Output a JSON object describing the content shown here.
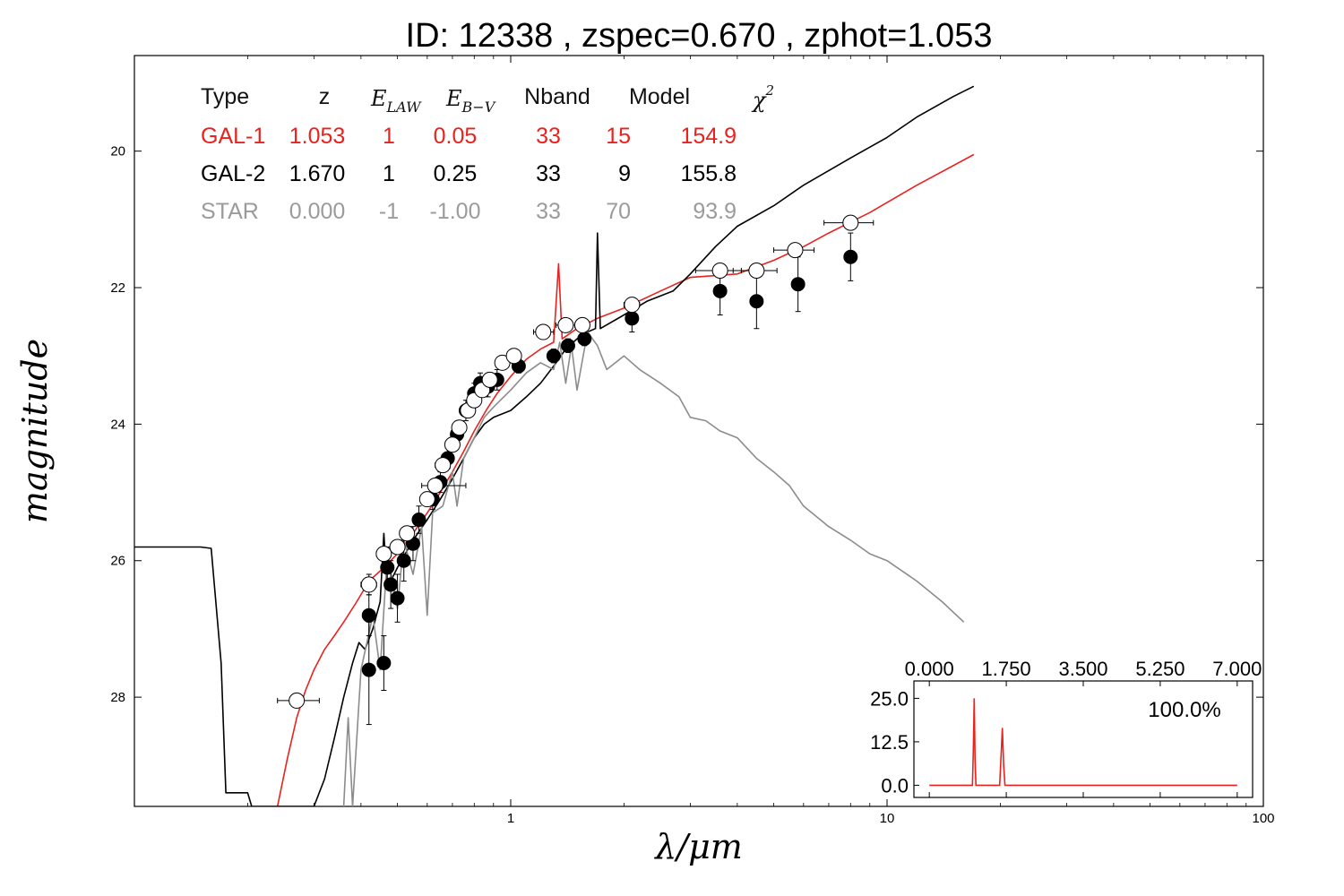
{
  "chart_data": {
    "type": "scatter",
    "title": "ID:  12338 , zspec=0.670 , zphot=1.053",
    "xlabel": "λ/μm",
    "ylabel": "magnitude",
    "xscale": "log",
    "xlim": [
      0.1,
      100
    ],
    "ylim": [
      29.6,
      18.6
    ],
    "y_inverted": true,
    "x_ticks": [
      1,
      10,
      100
    ],
    "x_tick_labels": [
      "1",
      "10",
      "100"
    ],
    "y_ticks": [
      20,
      22,
      24,
      26,
      28
    ],
    "y_tick_labels": [
      "20",
      "22",
      "24",
      "26",
      "28"
    ],
    "table": {
      "headers": [
        "Type",
        "z",
        "E_LAW",
        "E_B−V",
        "Nband",
        "Model",
        "χ²"
      ],
      "header_math": {
        "elaw": {
          "base": "E",
          "sub": "LAW"
        },
        "ebv": {
          "base": "E",
          "sub": "B−V"
        },
        "chi": {
          "base": "χ",
          "sup": "2"
        }
      },
      "rows": [
        {
          "color": "#e8231f",
          "cells": [
            "GAL-1",
            "1.053",
            "1",
            "0.05",
            "33",
            "15",
            "154.9"
          ]
        },
        {
          "color": "#000000",
          "cells": [
            "GAL-2",
            "1.670",
            "1",
            "0.25",
            "33",
            "9",
            "155.8"
          ]
        },
        {
          "color": "#9b9b9b",
          "cells": [
            "STAR",
            "0.000",
            "-1",
            "-1.00",
            "33",
            "70",
            "93.9"
          ]
        }
      ]
    },
    "series": [
      {
        "color": "#e8231f",
        "kind": "line",
        "points": [
          [
            0.24,
            29.6
          ],
          [
            0.255,
            28.9
          ],
          [
            0.27,
            28.3
          ],
          [
            0.285,
            27.9
          ],
          [
            0.3,
            27.6
          ],
          [
            0.32,
            27.3
          ],
          [
            0.34,
            27.1
          ],
          [
            0.36,
            26.9
          ],
          [
            0.39,
            26.6
          ],
          [
            0.42,
            26.3
          ],
          [
            0.46,
            26.1
          ],
          [
            0.5,
            25.9
          ],
          [
            0.55,
            25.6
          ],
          [
            0.6,
            25.3
          ],
          [
            0.65,
            25.0
          ],
          [
            0.7,
            24.7
          ],
          [
            0.75,
            24.4
          ],
          [
            0.8,
            24.1
          ],
          [
            0.86,
            23.8
          ],
          [
            0.92,
            23.55
          ],
          [
            1.0,
            23.3
          ],
          [
            1.1,
            23.05
          ],
          [
            1.2,
            22.9
          ],
          [
            1.3,
            22.8
          ],
          [
            1.34,
            21.65
          ],
          [
            1.37,
            22.75
          ],
          [
            1.5,
            22.6
          ],
          [
            1.7,
            22.45
          ],
          [
            2.0,
            22.3
          ],
          [
            2.5,
            22.05
          ],
          [
            3.0,
            21.85
          ],
          [
            4.0,
            21.8
          ],
          [
            5.0,
            21.6
          ],
          [
            6.0,
            21.4
          ],
          [
            7.0,
            21.2
          ],
          [
            9.0,
            20.9
          ],
          [
            12.0,
            20.5
          ],
          [
            17.0,
            20.05
          ]
        ]
      },
      {
        "color": "#000000",
        "kind": "line",
        "points": [
          [
            0.1,
            25.8
          ],
          [
            0.15,
            25.8
          ],
          [
            0.16,
            25.82
          ],
          [
            0.17,
            27.5
          ],
          [
            0.175,
            29.4
          ],
          [
            0.2,
            29.4
          ],
          [
            0.205,
            29.6
          ],
          [
            0.3,
            29.6
          ],
          [
            0.32,
            29.2
          ],
          [
            0.34,
            28.6
          ],
          [
            0.36,
            28.0
          ],
          [
            0.38,
            27.5
          ],
          [
            0.395,
            27.2
          ],
          [
            0.41,
            27.3
          ],
          [
            0.43,
            27.0
          ],
          [
            0.45,
            26.6
          ],
          [
            0.46,
            25.6
          ],
          [
            0.47,
            26.4
          ],
          [
            0.5,
            26.1
          ],
          [
            0.55,
            25.7
          ],
          [
            0.6,
            25.4
          ],
          [
            0.65,
            25.1
          ],
          [
            0.7,
            24.8
          ],
          [
            0.75,
            24.5
          ],
          [
            0.8,
            24.2
          ],
          [
            0.85,
            24.0
          ],
          [
            0.9,
            23.9
          ],
          [
            1.0,
            23.8
          ],
          [
            1.1,
            23.6
          ],
          [
            1.2,
            23.4
          ],
          [
            1.3,
            23.15
          ],
          [
            1.4,
            22.9
          ],
          [
            1.5,
            22.75
          ],
          [
            1.6,
            22.65
          ],
          [
            1.68,
            22.6
          ],
          [
            1.7,
            21.2
          ],
          [
            1.73,
            22.6
          ],
          [
            2.0,
            22.4
          ],
          [
            2.3,
            22.2
          ],
          [
            2.7,
            22.05
          ],
          [
            3.0,
            21.8
          ],
          [
            3.5,
            21.4
          ],
          [
            4.0,
            21.1
          ],
          [
            5.0,
            20.8
          ],
          [
            6.0,
            20.5
          ],
          [
            8.0,
            20.1
          ],
          [
            10.0,
            19.8
          ],
          [
            12.0,
            19.5
          ],
          [
            15.0,
            19.2
          ],
          [
            17.0,
            19.05
          ]
        ]
      },
      {
        "color": "#8c8c8c",
        "kind": "line",
        "points": [
          [
            0.36,
            29.6
          ],
          [
            0.37,
            28.3
          ],
          [
            0.38,
            29.6
          ],
          [
            0.4,
            27.6
          ],
          [
            0.43,
            26.8
          ],
          [
            0.45,
            27.6
          ],
          [
            0.47,
            25.9
          ],
          [
            0.5,
            26.7
          ],
          [
            0.52,
            25.7
          ],
          [
            0.55,
            26.2
          ],
          [
            0.58,
            25.5
          ],
          [
            0.6,
            26.8
          ],
          [
            0.62,
            25.3
          ],
          [
            0.66,
            25.2
          ],
          [
            0.7,
            24.7
          ],
          [
            0.72,
            25.2
          ],
          [
            0.75,
            24.5
          ],
          [
            0.8,
            24.2
          ],
          [
            0.85,
            23.9
          ],
          [
            0.9,
            23.75
          ],
          [
            1.0,
            23.5
          ],
          [
            1.1,
            23.25
          ],
          [
            1.2,
            23.1
          ],
          [
            1.3,
            23.2
          ],
          [
            1.35,
            22.8
          ],
          [
            1.4,
            23.4
          ],
          [
            1.45,
            22.85
          ],
          [
            1.5,
            23.5
          ],
          [
            1.6,
            22.65
          ],
          [
            1.7,
            22.85
          ],
          [
            1.8,
            23.2
          ],
          [
            2.0,
            23.0
          ],
          [
            2.2,
            23.2
          ],
          [
            2.5,
            23.4
          ],
          [
            2.8,
            23.6
          ],
          [
            3.0,
            23.9
          ],
          [
            3.3,
            23.95
          ],
          [
            3.6,
            24.1
          ],
          [
            4.0,
            24.2
          ],
          [
            4.5,
            24.5
          ],
          [
            5.0,
            24.7
          ],
          [
            5.5,
            24.9
          ],
          [
            6.0,
            25.2
          ],
          [
            7.0,
            25.5
          ],
          [
            8.0,
            25.7
          ],
          [
            9.0,
            25.9
          ],
          [
            10.0,
            26.0
          ],
          [
            12.0,
            26.3
          ],
          [
            14.0,
            26.6
          ],
          [
            16.0,
            26.9
          ]
        ]
      }
    ],
    "points_open": [
      {
        "x": 0.27,
        "y": 28.05,
        "xerr": [
          0.24,
          0.31
        ],
        "yerr": [
          27.95,
          28.15
        ]
      },
      {
        "x": 0.42,
        "y": 26.35,
        "xerr": [
          0.4,
          0.44
        ],
        "yerr": [
          26.2,
          26.5
        ]
      },
      {
        "x": 0.46,
        "y": 25.9,
        "xerr": [
          0.44,
          0.48
        ],
        "yerr": [
          25.8,
          26.0
        ]
      },
      {
        "x": 0.5,
        "y": 25.8,
        "xerr": [
          0.48,
          0.52
        ],
        "yerr": [
          25.7,
          25.9
        ]
      },
      {
        "x": 0.53,
        "y": 25.6,
        "xerr": [
          0.51,
          0.55
        ],
        "yerr": [
          25.5,
          25.7
        ]
      },
      {
        "x": 0.6,
        "y": 25.1,
        "xerr": [
          0.58,
          0.62
        ],
        "yerr": [
          25.0,
          25.2
        ]
      },
      {
        "x": 0.63,
        "y": 24.9,
        "xerr": [
          0.58,
          0.76
        ],
        "yerr": [
          24.8,
          25.0
        ]
      },
      {
        "x": 0.66,
        "y": 24.6,
        "xerr": [
          0.63,
          0.69
        ],
        "yerr": [
          24.5,
          24.7
        ]
      },
      {
        "x": 0.7,
        "y": 24.3,
        "xerr": [
          0.68,
          0.72
        ],
        "yerr": [
          24.2,
          24.4
        ]
      },
      {
        "x": 0.73,
        "y": 24.05,
        "xerr": [
          0.71,
          0.75
        ],
        "yerr": [
          23.95,
          24.15
        ]
      },
      {
        "x": 0.77,
        "y": 23.8,
        "xerr": [
          0.75,
          0.79
        ],
        "yerr": [
          23.7,
          23.9
        ]
      },
      {
        "x": 0.8,
        "y": 23.65,
        "xerr": [
          0.78,
          0.82
        ],
        "yerr": [
          23.55,
          23.75
        ]
      },
      {
        "x": 0.84,
        "y": 23.5,
        "xerr": [
          0.82,
          0.86
        ],
        "yerr": [
          23.4,
          23.6
        ]
      },
      {
        "x": 0.88,
        "y": 23.35,
        "xerr": [
          0.86,
          0.9
        ],
        "yerr": [
          23.25,
          23.45
        ]
      },
      {
        "x": 0.95,
        "y": 23.1,
        "xerr": [
          0.92,
          0.98
        ],
        "yerr": [
          23.0,
          23.2
        ]
      },
      {
        "x": 1.02,
        "y": 23.0,
        "xerr": [
          0.99,
          1.05
        ],
        "yerr": [
          22.9,
          23.1
        ]
      },
      {
        "x": 1.22,
        "y": 22.65,
        "xerr": [
          1.15,
          1.3
        ],
        "yerr": [
          22.55,
          22.75
        ]
      },
      {
        "x": 1.4,
        "y": 22.55,
        "xerr": [
          1.32,
          1.48
        ],
        "yerr": [
          22.45,
          22.65
        ]
      },
      {
        "x": 1.55,
        "y": 22.55,
        "xerr": [
          1.48,
          1.62
        ],
        "yerr": [
          22.45,
          22.65
        ]
      },
      {
        "x": 2.1,
        "y": 22.25,
        "xerr": [
          2.0,
          2.2
        ],
        "yerr": [
          22.15,
          22.35
        ]
      },
      {
        "x": 3.6,
        "y": 21.75,
        "xerr": [
          3.1,
          4.1
        ],
        "yerr": [
          21.7,
          21.8
        ]
      },
      {
        "x": 4.5,
        "y": 21.75,
        "xerr": [
          3.9,
          5.1
        ],
        "yerr": [
          21.7,
          21.8
        ]
      },
      {
        "x": 5.7,
        "y": 21.45,
        "xerr": [
          5.0,
          6.4
        ],
        "yerr": [
          21.4,
          21.5
        ]
      },
      {
        "x": 8.0,
        "y": 21.05,
        "xerr": [
          6.8,
          9.2
        ],
        "yerr": [
          21.0,
          21.1
        ]
      }
    ],
    "points_filled": [
      {
        "x": 0.42,
        "y": 26.8,
        "yerr": [
          26.5,
          27.1
        ]
      },
      {
        "x": 0.42,
        "y": 27.6,
        "yerr": [
          26.9,
          28.4
        ]
      },
      {
        "x": 0.46,
        "y": 27.5,
        "yerr": [
          27.1,
          27.9
        ]
      },
      {
        "x": 0.47,
        "y": 26.1,
        "yerr": [
          25.8,
          26.4
        ]
      },
      {
        "x": 0.48,
        "y": 26.35,
        "yerr": [
          26.0,
          26.7
        ]
      },
      {
        "x": 0.5,
        "y": 26.55,
        "yerr": [
          26.2,
          26.9
        ]
      },
      {
        "x": 0.52,
        "y": 26.0,
        "yerr": [
          25.7,
          26.3
        ]
      },
      {
        "x": 0.55,
        "y": 25.75,
        "yerr": [
          25.5,
          26.0
        ]
      },
      {
        "x": 0.57,
        "y": 25.4,
        "yerr": [
          25.2,
          25.6
        ]
      },
      {
        "x": 0.62,
        "y": 25.1,
        "yerr": [
          24.95,
          25.25
        ]
      },
      {
        "x": 0.65,
        "y": 24.85,
        "yerr": [
          24.7,
          25.0
        ]
      },
      {
        "x": 0.68,
        "y": 24.5,
        "yerr": [
          24.35,
          24.65
        ]
      },
      {
        "x": 0.72,
        "y": 24.15,
        "yerr": [
          24.0,
          24.3
        ]
      },
      {
        "x": 0.76,
        "y": 23.8,
        "yerr": [
          23.65,
          23.95
        ]
      },
      {
        "x": 0.8,
        "y": 23.55,
        "yerr": [
          23.4,
          23.7
        ]
      },
      {
        "x": 0.83,
        "y": 23.4,
        "yerr": [
          23.25,
          23.55
        ]
      },
      {
        "x": 0.87,
        "y": 23.45,
        "yerr": [
          23.3,
          23.6
        ]
      },
      {
        "x": 0.92,
        "y": 23.35,
        "yerr": [
          23.2,
          23.5
        ]
      },
      {
        "x": 1.05,
        "y": 23.15,
        "yerr": [
          23.05,
          23.25
        ]
      },
      {
        "x": 1.3,
        "y": 23.0,
        "yerr": [
          22.9,
          23.1
        ]
      },
      {
        "x": 1.42,
        "y": 22.85,
        "yerr": [
          22.75,
          22.95
        ]
      },
      {
        "x": 1.57,
        "y": 22.75,
        "yerr": [
          22.65,
          22.85
        ]
      },
      {
        "x": 2.1,
        "y": 22.45,
        "yerr": [
          22.25,
          22.65
        ]
      },
      {
        "x": 3.6,
        "y": 22.05,
        "yerr": [
          21.7,
          22.4
        ]
      },
      {
        "x": 4.5,
        "y": 22.2,
        "yerr": [
          21.8,
          22.6
        ]
      },
      {
        "x": 5.8,
        "y": 21.95,
        "yerr": [
          21.55,
          22.35
        ]
      },
      {
        "x": 8.0,
        "y": 21.55,
        "yerr": [
          21.2,
          21.9
        ]
      }
    ],
    "inset": {
      "type": "line",
      "xlim": [
        -0.35,
        7.35
      ],
      "ylim": [
        -3.5,
        30
      ],
      "x_ticks": [
        0.0,
        1.75,
        3.5,
        5.25,
        7.0
      ],
      "x_tick_labels": [
        "0.000",
        "1.750",
        "3.500",
        "5.250",
        "7.000"
      ],
      "y_ticks": [
        0.0,
        12.5,
        25.0
      ],
      "y_tick_labels": [
        "0.0",
        "12.5",
        "25.0"
      ],
      "annotation": "100.0%",
      "color": "#e8231f",
      "points": [
        [
          0.0,
          0.0
        ],
        [
          0.98,
          0.0
        ],
        [
          1.0,
          10.0
        ],
        [
          1.02,
          25.0
        ],
        [
          1.04,
          8.0
        ],
        [
          1.06,
          0.0
        ],
        [
          1.6,
          0.0
        ],
        [
          1.63,
          8.0
        ],
        [
          1.66,
          16.5
        ],
        [
          1.69,
          6.0
        ],
        [
          1.72,
          0.0
        ],
        [
          7.0,
          0.0
        ]
      ]
    }
  }
}
